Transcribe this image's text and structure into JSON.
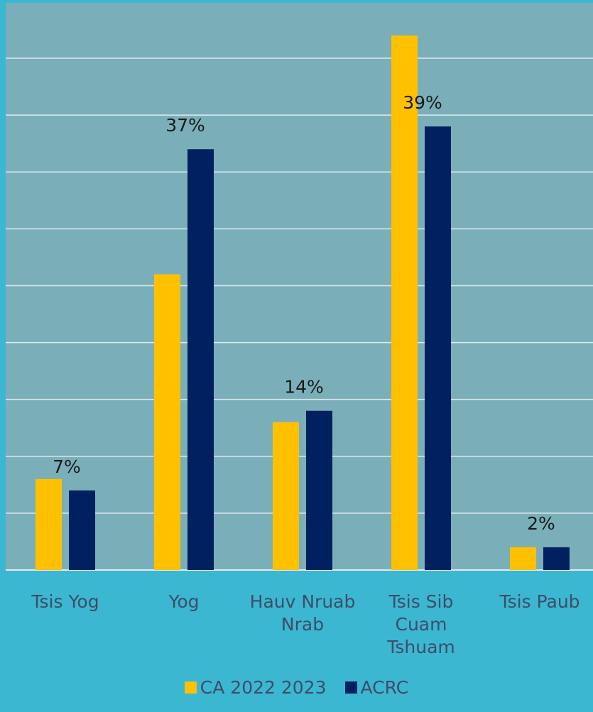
{
  "chart_data": {
    "type": "bar",
    "title": "",
    "xlabel": "",
    "ylabel": "",
    "categories": [
      "Tsis Yog",
      "Yog",
      "Hauv Nruab Nrab",
      "Tsis Sib Cuam Tshuam",
      "Tsis Paub"
    ],
    "ylim": [
      0,
      47
    ],
    "grid": true,
    "legend_position": "bottom",
    "series": [
      {
        "name": "CA 2022 2023",
        "color": "#ffc000",
        "values": [
          8,
          26,
          13,
          47,
          2
        ],
        "labels": [
          "",
          "",
          "",
          "",
          ""
        ]
      },
      {
        "name": "ACRC",
        "color": "#002060",
        "values": [
          7,
          37,
          14,
          39,
          2
        ],
        "labels": [
          "7%",
          "37%",
          "14%",
          "39%",
          "2%"
        ]
      }
    ]
  },
  "colors": {
    "background": "#3cb7d2",
    "plot_area": "#7aafba",
    "gridline": "#dfeaee",
    "text": "#3d4d6a"
  }
}
